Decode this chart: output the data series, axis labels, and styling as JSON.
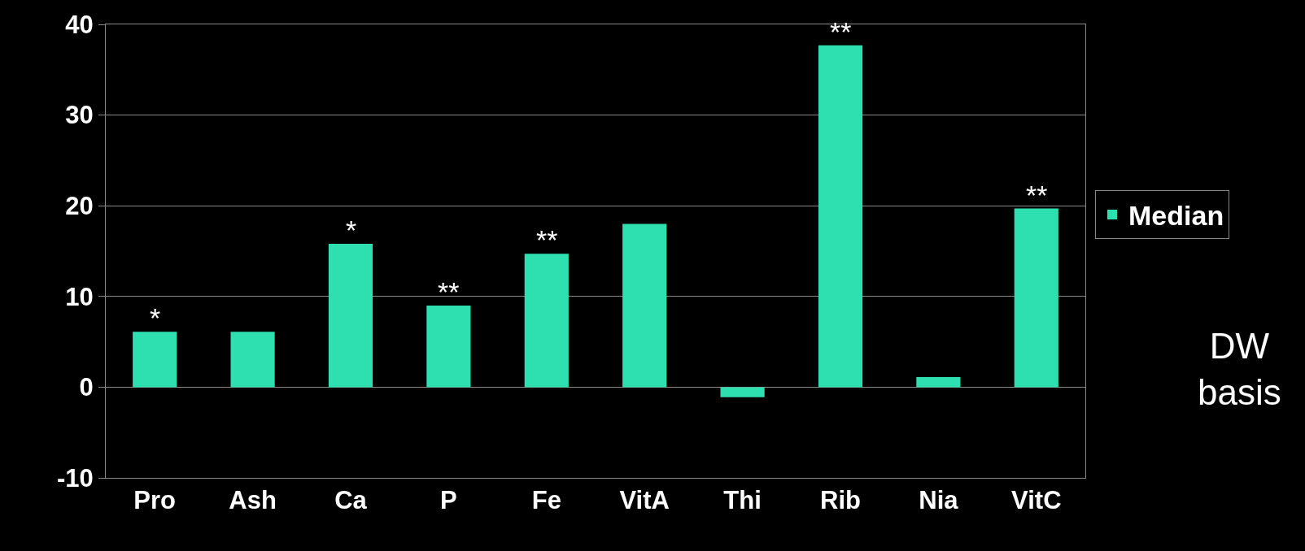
{
  "chart_data": {
    "type": "bar",
    "categories": [
      "Pro",
      "Ash",
      "Ca",
      "P",
      "Fe",
      "VitA",
      "Thi",
      "Rib",
      "Nia",
      "VitC"
    ],
    "series": [
      {
        "name": "Median",
        "color": "#2ee0b0",
        "values": [
          6.1,
          6.1,
          15.8,
          9,
          14.7,
          18,
          -1.1,
          37.7,
          1.1,
          19.7
        ]
      }
    ],
    "ylim": [
      -10,
      40
    ],
    "yticks": [
      -10,
      0,
      10,
      20,
      30,
      40
    ],
    "grid": "y",
    "legend": "right",
    "annotations": [
      {
        "text": "*",
        "x": "Pro",
        "y": 6.1
      },
      {
        "text": "*",
        "x": "Ca",
        "y": 15.8
      },
      {
        "text": "**",
        "x": "P",
        "y": 9
      },
      {
        "text": "**",
        "x": "Fe",
        "y": 14.7
      },
      {
        "text": "**",
        "x": "Rib",
        "y": 37.7
      },
      {
        "text": "**",
        "x": "VitC",
        "y": 19.7
      },
      "DW basis"
    ]
  }
}
